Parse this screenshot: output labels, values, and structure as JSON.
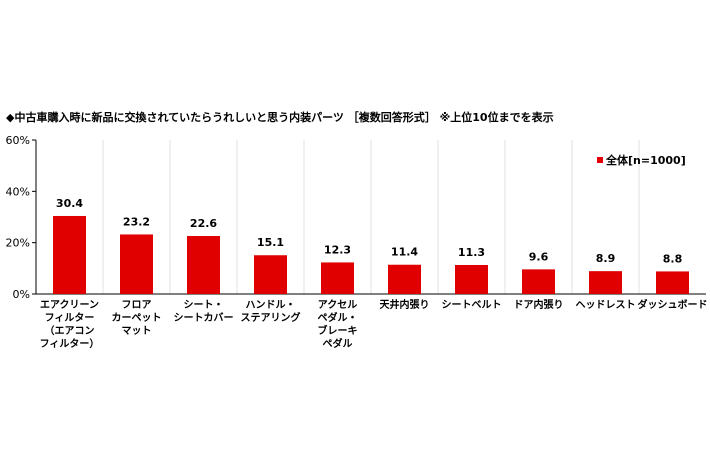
{
  "title": "◆中古車購入時に新品に交換されていたらうれしいと思う内装パーツ ［複数回答形式］ ※上位10位までを表示",
  "chart_data": {
    "type": "bar",
    "categories": [
      [
        "エアクリーン",
        "フィルター",
        "（エアコン",
        "フィルター）"
      ],
      [
        "フロア",
        "カーペット",
        "マット"
      ],
      [
        "シート・",
        "シートカバー"
      ],
      [
        "ハンドル・",
        "ステアリング"
      ],
      [
        "アクセル",
        "ペダル・",
        "ブレーキ",
        "ペダル"
      ],
      [
        "天井内張り"
      ],
      [
        "シートベルト"
      ],
      [
        "ドア内張り"
      ],
      [
        "ヘッドレスト"
      ],
      [
        "ダッシュボード"
      ]
    ],
    "series": [
      {
        "name": "全体[n=1000]",
        "values": [
          30.4,
          23.2,
          22.6,
          15.1,
          12.3,
          11.4,
          11.3,
          9.6,
          8.9,
          8.8
        ],
        "value_labels": [
          "30.4",
          "23.2",
          "22.6",
          "15.1",
          "12.3",
          "11.4",
          "11.3",
          "9.6",
          "8.9",
          "8.8"
        ],
        "color": "#e00000"
      }
    ],
    "ylim": [
      0,
      60
    ],
    "yticks": [
      0,
      20,
      40,
      60
    ],
    "ytick_labels": [
      "0%",
      "20%",
      "40%",
      "60%"
    ],
    "grid": "vertical separators",
    "legend_position": "top-right"
  }
}
